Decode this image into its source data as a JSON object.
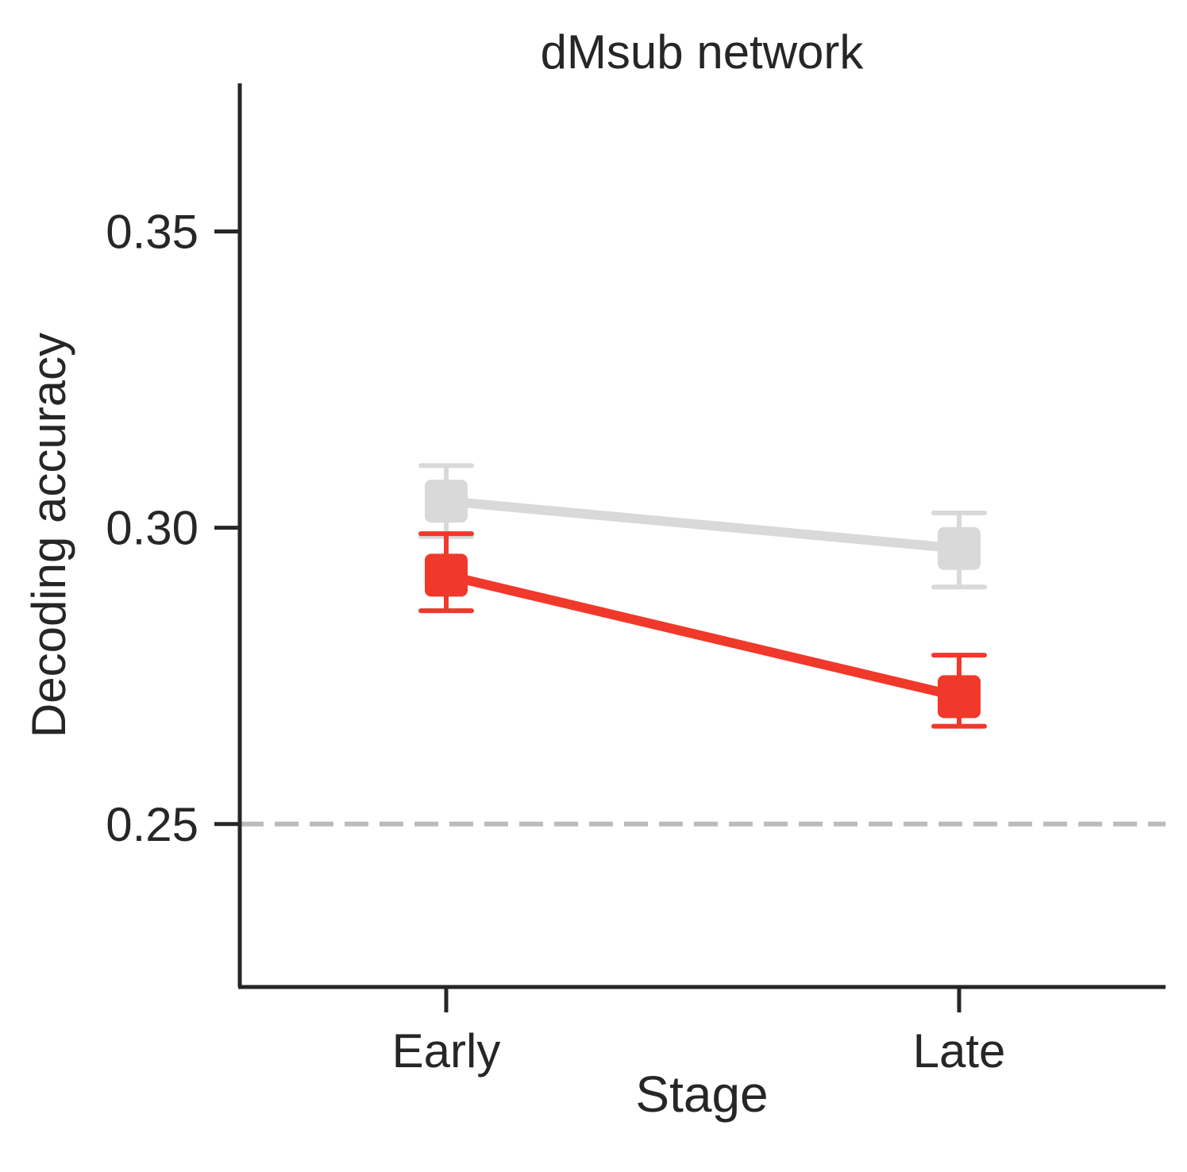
{
  "chart_data": {
    "type": "line",
    "title": "dMsub network",
    "xlabel": "Stage",
    "ylabel": "Decoding accuracy",
    "categories": [
      "Early",
      "Late"
    ],
    "yticks": [
      "0.25",
      "0.30",
      "0.35"
    ],
    "ytick_values": [
      0.25,
      0.3,
      0.35
    ],
    "ylim": [
      0.2225,
      0.375
    ],
    "chance_level": 0.25,
    "series": [
      {
        "color": "#d9d9d9",
        "values": [
          0.3045,
          0.2965
        ],
        "err_low": [
          0.2985,
          0.29
        ],
        "err_high": [
          0.3105,
          0.3025
        ]
      },
      {
        "color": "#f0392b",
        "values": [
          0.292,
          0.2715
        ],
        "err_low": [
          0.286,
          0.2665
        ],
        "err_high": [
          0.299,
          0.2785
        ]
      }
    ],
    "colors": {
      "axis": "#262626",
      "chance_line": "#bbbbbb"
    }
  }
}
